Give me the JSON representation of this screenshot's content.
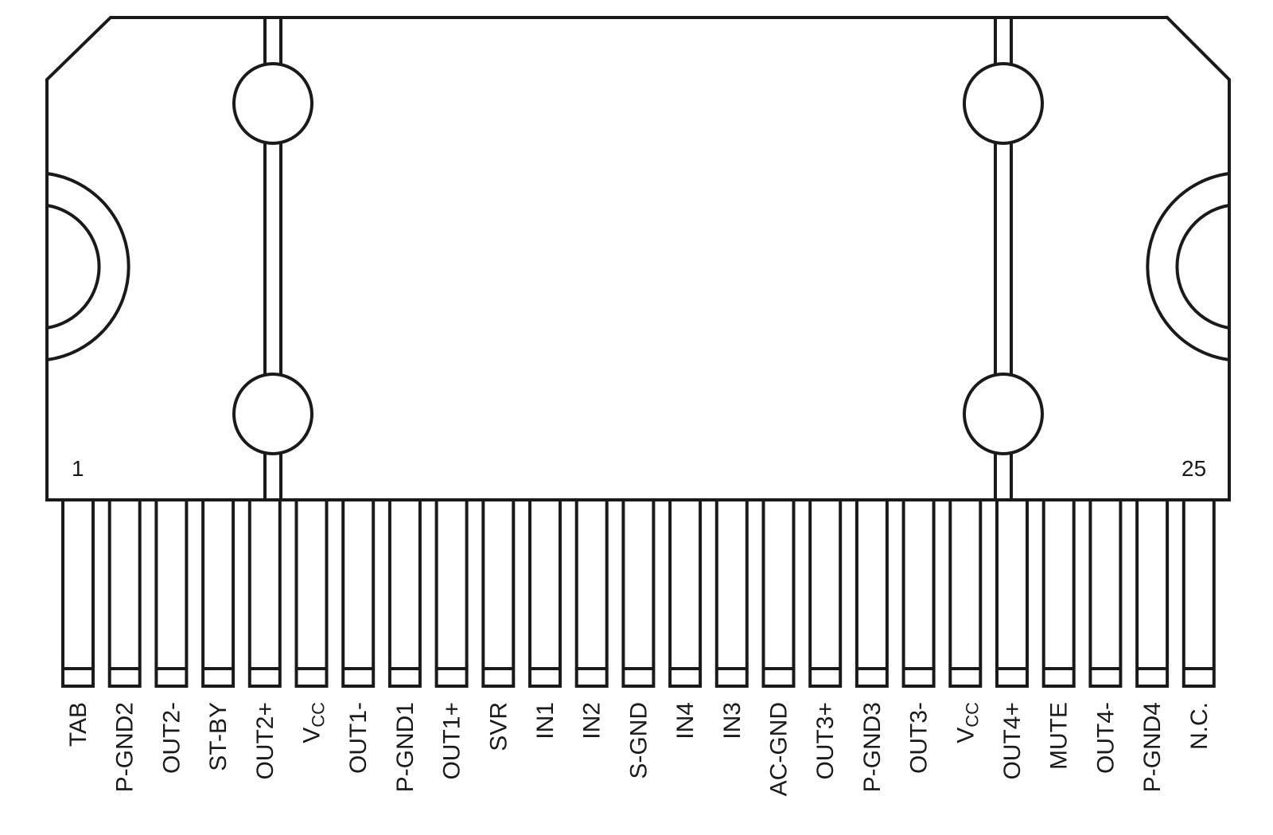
{
  "package": {
    "first_pin_number": "1",
    "last_pin_number": "25"
  },
  "pins": [
    {
      "label": "TAB"
    },
    {
      "label": "P-GND2"
    },
    {
      "label": "OUT2-"
    },
    {
      "label": "ST-BY"
    },
    {
      "label": "OUT2+"
    },
    {
      "label": "V",
      "sub": "CC"
    },
    {
      "label": "OUT1-"
    },
    {
      "label": "P-GND1"
    },
    {
      "label": "OUT1+"
    },
    {
      "label": "SVR"
    },
    {
      "label": "IN1"
    },
    {
      "label": "IN2"
    },
    {
      "label": "S-GND"
    },
    {
      "label": "IN4"
    },
    {
      "label": "IN3"
    },
    {
      "label": "AC-GND"
    },
    {
      "label": "OUT3+"
    },
    {
      "label": "P-GND3"
    },
    {
      "label": "OUT3-"
    },
    {
      "label": "V",
      "sub": "CC"
    },
    {
      "label": "OUT4+"
    },
    {
      "label": "MUTE"
    },
    {
      "label": "OUT4-"
    },
    {
      "label": "P-GND4"
    },
    {
      "label": "N.C."
    }
  ],
  "colors": {
    "line": "#1a1a1a",
    "background": "#ffffff"
  }
}
